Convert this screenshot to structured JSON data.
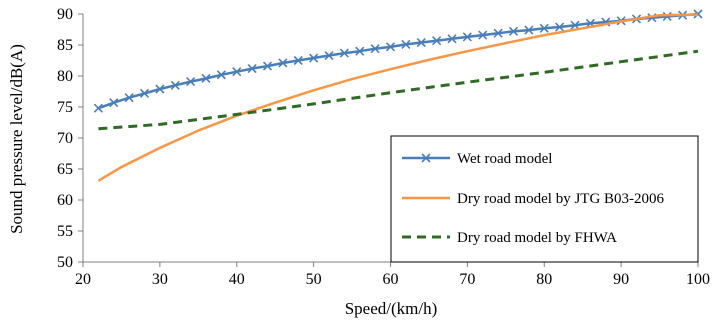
{
  "chart_data": {
    "type": "line",
    "title": "",
    "xlabel": "Speed/(km/h)",
    "ylabel": "Sound pressure level/dB(A)",
    "xlim": [
      20,
      100
    ],
    "ylim": [
      50,
      90
    ],
    "xticks": [
      20,
      30,
      40,
      50,
      60,
      70,
      80,
      90,
      100
    ],
    "yticks": [
      50,
      55,
      60,
      65,
      70,
      75,
      80,
      85,
      90
    ],
    "grid": false,
    "legend_position": "lower-right",
    "series": [
      {
        "name": "Wet road model",
        "color": "#4a7ebb",
        "style": "solid-with-x-markers",
        "x": [
          22,
          24,
          26,
          28,
          30,
          32,
          34,
          36,
          38,
          40,
          42,
          44,
          46,
          48,
          50,
          52,
          54,
          56,
          58,
          60,
          62,
          64,
          66,
          68,
          70,
          72,
          74,
          76,
          78,
          80,
          82,
          84,
          86,
          88,
          90,
          92,
          94,
          96,
          98,
          100
        ],
        "values": [
          74.8,
          75.7,
          76.5,
          77.2,
          77.9,
          78.5,
          79.1,
          79.6,
          80.2,
          80.7,
          81.2,
          81.6,
          82.1,
          82.5,
          82.9,
          83.3,
          83.7,
          84.0,
          84.4,
          84.7,
          85.1,
          85.4,
          85.7,
          86.0,
          86.3,
          86.6,
          86.9,
          87.2,
          87.4,
          87.7,
          87.9,
          88.2,
          88.5,
          88.7,
          88.9,
          89.2,
          89.4,
          89.6,
          89.8,
          90.0
        ]
      },
      {
        "name": "Dry road model by JTG B03-2006",
        "color": "#f79646",
        "style": "solid",
        "x": [
          22,
          25,
          30,
          35,
          40,
          45,
          50,
          55,
          60,
          65,
          70,
          75,
          80,
          85,
          90,
          95,
          100
        ],
        "values": [
          63.1,
          65.3,
          68.4,
          71.2,
          73.6,
          75.7,
          77.7,
          79.5,
          81.1,
          82.6,
          84.0,
          85.3,
          86.6,
          87.7,
          88.8,
          89.8,
          89.9
        ]
      },
      {
        "name": "Dry road model by FHWA",
        "color": "#2f6b24",
        "style": "dashed",
        "x": [
          22,
          30,
          40,
          50,
          60,
          70,
          80,
          90,
          100
        ],
        "values": [
          71.5,
          72.2,
          73.8,
          75.5,
          77.3,
          79.0,
          80.6,
          82.3,
          84.0
        ]
      }
    ]
  }
}
